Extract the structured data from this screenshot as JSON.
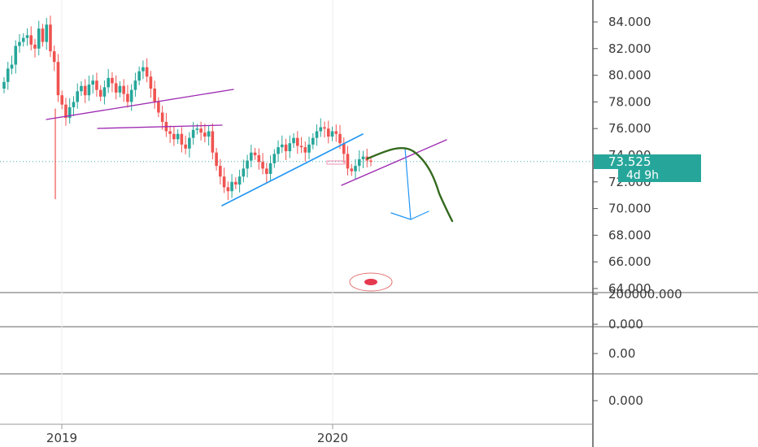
{
  "chart_data": {
    "type": "candlestick",
    "price_axis": {
      "ticks": [
        "84.000",
        "82.000",
        "80.000",
        "78.000",
        "76.000",
        "74.000",
        "72.000",
        "70.000",
        "68.000",
        "66.000",
        "64.000"
      ],
      "ylim": [
        63.5,
        85.5
      ]
    },
    "time_axis": {
      "ticks": [
        "2019",
        "2020"
      ]
    },
    "last_price": "73.525",
    "countdown": "4d 9h",
    "indicator_panes": [
      {
        "scale_label": "200000.000"
      },
      {
        "scale_label": "0.000"
      },
      {
        "scale_label": "0.00"
      },
      {
        "scale_label": "0.000"
      }
    ],
    "series": [
      {
        "values": [
          79.5,
          80.5,
          80.8,
          82.2,
          82.5,
          82.8,
          83.0,
          82.3,
          82.0,
          83.5,
          82.5,
          83.8,
          81.8,
          81.0,
          78.5,
          77.8,
          76.8,
          77.6,
          78.0,
          78.8,
          79.2,
          78.5,
          79.3,
          79.6,
          78.9,
          78.4,
          79.1,
          79.8,
          79.4,
          78.7,
          79.2,
          78.6,
          78.0,
          78.9,
          79.6,
          80.3,
          80.6,
          79.9,
          79.0,
          78.0,
          77.2,
          76.5,
          75.8,
          75.6,
          75.2,
          75.6,
          74.8,
          74.5,
          75.3,
          75.9,
          76.0,
          75.7,
          75.4,
          75.8,
          74.2,
          73.2,
          72.4,
          71.6,
          71.3,
          72.0,
          71.8,
          72.4,
          73.0,
          73.6,
          74.2,
          74.0,
          73.5,
          73.0,
          72.6,
          73.4,
          74.1,
          74.6,
          74.8,
          74.3,
          74.9,
          75.3,
          74.7,
          74.6,
          74.2,
          74.8,
          75.3,
          75.8,
          76.1,
          76.0,
          75.4,
          75.8,
          75.6,
          74.9,
          74.1,
          73.0,
          72.8,
          73.2,
          73.7,
          73.9,
          73.6,
          73.52
        ]
      }
    ],
    "annotations": {
      "trendlines": "purple",
      "channel": "blue",
      "projection_curve": "green",
      "target_arrow": "blue"
    }
  },
  "colors": {
    "up": "#26a69a",
    "down": "#ef5350",
    "trend_purple": "#9c27b0",
    "trend_blue": "#2196f3",
    "curve_green": "#33691e",
    "badge": "#26a69a",
    "axis_line": "#555555"
  }
}
